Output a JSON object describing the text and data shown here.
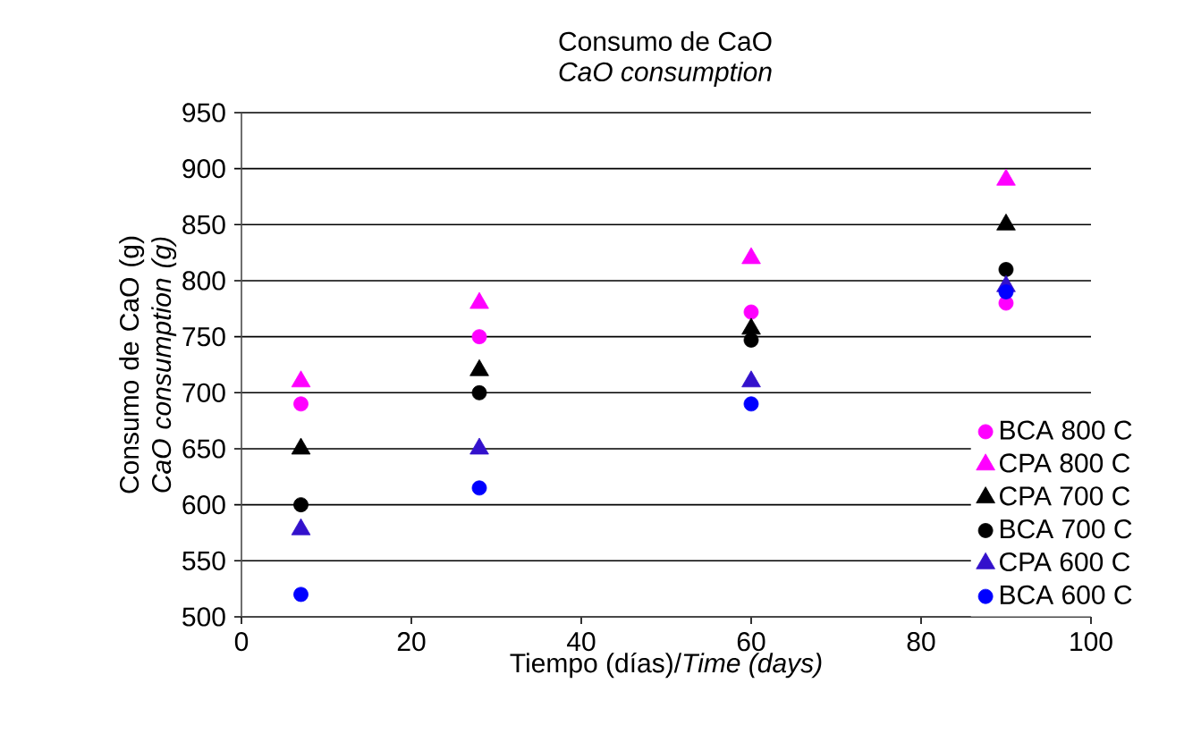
{
  "chart_data": {
    "type": "scatter",
    "title": "Consumo de CaO",
    "subtitle": "*CaO consumption*",
    "xlabel": "Tiempo (días)/*Time (days)*",
    "ylabel": "Consumo de CaO (g) *CaO consumption (g)*",
    "x": [
      7,
      28,
      60,
      90
    ],
    "series": [
      {
        "name": "BCA 800 C",
        "color": "#ff00ff",
        "marker": "circle",
        "values": [
          690,
          750,
          772,
          780
        ]
      },
      {
        "name": "CPA 800 C",
        "color": "#ff00ff",
        "marker": "triangle",
        "values": [
          710,
          780,
          820,
          890
        ]
      },
      {
        "name": "CPA 700 C",
        "color": "#000000",
        "marker": "triangle",
        "values": [
          650,
          720,
          757,
          850
        ]
      },
      {
        "name": "BCA 700 C",
        "color": "#000000",
        "marker": "circle",
        "values": [
          600,
          700,
          747,
          810
        ]
      },
      {
        "name": "CPA 600 C",
        "color": "#3311cc",
        "marker": "triangle",
        "values": [
          578,
          650,
          710,
          795
        ]
      },
      {
        "name": "BCA 600 C",
        "color": "#0000ff",
        "marker": "circle",
        "values": [
          520,
          615,
          690,
          790
        ]
      }
    ],
    "xlim": [
      0,
      100
    ],
    "xticks": [
      0,
      20,
      40,
      60,
      80,
      100
    ],
    "ylim": [
      500,
      950
    ],
    "yticks": [
      500,
      550,
      600,
      650,
      700,
      750,
      800,
      850,
      900,
      950
    ],
    "grid": "y",
    "legend": "bottom right"
  }
}
